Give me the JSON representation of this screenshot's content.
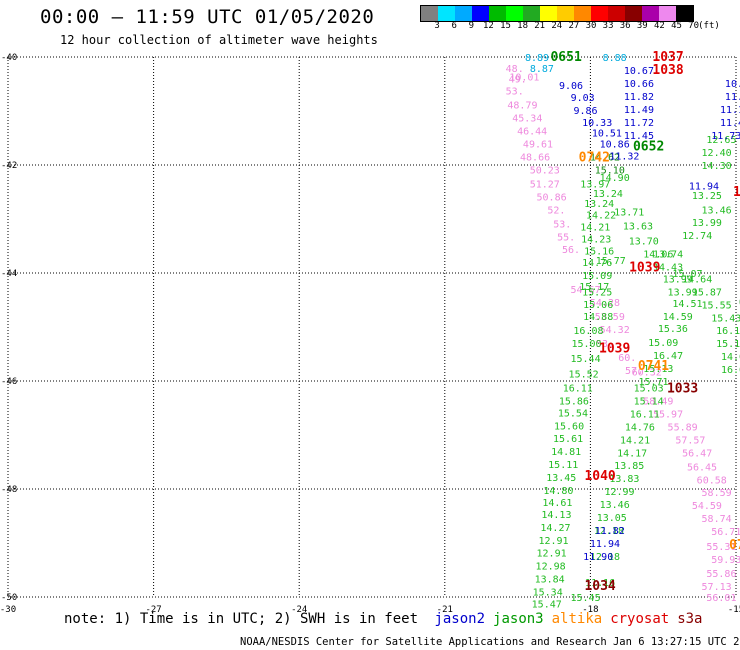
{
  "header": {
    "title": "00:00 – 11:59 UTC 01/05/2020",
    "subtitle": "12 hour collection of altimeter wave heights"
  },
  "colorbar": {
    "unit_label": "(ft)",
    "ticks": [
      "3",
      "6",
      "9",
      "12",
      "15",
      "18",
      "21",
      "24",
      "27",
      "30",
      "33",
      "36",
      "39",
      "42",
      "45",
      "70"
    ],
    "colors": [
      "#808080",
      "#00e5ff",
      "#00aaff",
      "#0000ff",
      "#00bb00",
      "#00ff00",
      "#22aa22",
      "#ffff00",
      "#ffcc00",
      "#ff8800",
      "#ff0000",
      "#cc0000",
      "#880000",
      "#aa00aa",
      "#ee88ee",
      "#000000"
    ]
  },
  "map": {
    "lon_ticks": [
      "-30",
      "-27",
      "-24",
      "-21",
      "-18",
      "-15"
    ],
    "lat_ticks": [
      "-40",
      "-42",
      "-44",
      "-46",
      "-48",
      "-50"
    ],
    "lon_range": [
      -30,
      -15
    ],
    "lat_range": [
      -50,
      -40
    ],
    "grid": true
  },
  "observations": {
    "jason3": [
      {
        "t": "15.77",
        "lon": -17.58,
        "lat": -43.76
      },
      {
        "t": "15.25",
        "lon": -17.86,
        "lat": -44.34
      },
      {
        "t": "15.06",
        "lon": -17.84,
        "lat": -44.57
      },
      {
        "t": "14.88",
        "lon": -17.84,
        "lat": -44.8
      },
      {
        "t": "16.08",
        "lon": -18.04,
        "lat": -45.06
      },
      {
        "t": "15.00",
        "lon": -18.08,
        "lat": -45.3
      },
      {
        "t": "15.44",
        "lon": -18.1,
        "lat": -45.57
      },
      {
        "t": "15.52",
        "lon": -18.14,
        "lat": -45.86
      },
      {
        "t": "16.11",
        "lon": -18.26,
        "lat": -46.12
      },
      {
        "t": "15.86",
        "lon": -18.34,
        "lat": -46.36
      },
      {
        "t": "15.54",
        "lon": -18.36,
        "lat": -46.58
      },
      {
        "t": "15.60",
        "lon": -18.44,
        "lat": -46.82
      },
      {
        "t": "15.61",
        "lon": -18.46,
        "lat": -47.06
      },
      {
        "t": "14.81",
        "lon": -18.5,
        "lat": -47.3
      },
      {
        "t": "15.11",
        "lon": -18.56,
        "lat": -47.54
      },
      {
        "t": "13.45",
        "lon": -18.6,
        "lat": -47.78
      },
      {
        "t": "14.80",
        "lon": -18.66,
        "lat": -48.02
      },
      {
        "t": "14.61",
        "lon": -18.68,
        "lat": -48.24
      },
      {
        "t": "14.13",
        "lon": -18.7,
        "lat": -48.46
      },
      {
        "t": "14.27",
        "lon": -18.72,
        "lat": -48.7
      },
      {
        "t": "12.91",
        "lon": -18.76,
        "lat": -48.94
      },
      {
        "t": "12.91",
        "lon": -18.8,
        "lat": -49.18
      },
      {
        "t": "12.98",
        "lon": -18.82,
        "lat": -49.42
      },
      {
        "t": "13.84",
        "lon": -18.84,
        "lat": -49.66
      },
      {
        "t": "15.34",
        "lon": -18.88,
        "lat": -49.9
      },
      {
        "t": "15.47",
        "lon": -18.9,
        "lat": -50.12
      },
      {
        "t": "13.97",
        "lon": -17.9,
        "lat": -42.34
      },
      {
        "t": "13.24",
        "lon": -17.64,
        "lat": -42.52
      },
      {
        "t": "13.24",
        "lon": -17.82,
        "lat": -42.7
      },
      {
        "t": "14.22",
        "lon": -17.78,
        "lat": -42.92
      },
      {
        "t": "14.21",
        "lon": -17.9,
        "lat": -43.14
      },
      {
        "t": "14.23",
        "lon": -17.88,
        "lat": -43.36
      },
      {
        "t": "15.16",
        "lon": -17.82,
        "lat": -43.58
      },
      {
        "t": "14.76",
        "lon": -17.86,
        "lat": -43.8
      },
      {
        "t": "15.09",
        "lon": -17.86,
        "lat": -44.04
      },
      {
        "t": "15.17",
        "lon": -17.92,
        "lat": -44.24
      },
      {
        "t": "15.03",
        "lon": -16.8,
        "lat": -46.12
      },
      {
        "t": "15.14",
        "lon": -16.8,
        "lat": -46.36
      },
      {
        "t": "16.11",
        "lon": -16.88,
        "lat": -46.6
      },
      {
        "t": "14.76",
        "lon": -16.98,
        "lat": -46.84
      },
      {
        "t": "14.21",
        "lon": -17.08,
        "lat": -47.08
      },
      {
        "t": "14.17",
        "lon": -17.14,
        "lat": -47.32
      },
      {
        "t": "13.85",
        "lon": -17.2,
        "lat": -47.56
      },
      {
        "t": "13.83",
        "lon": -17.3,
        "lat": -47.8
      },
      {
        "t": "12.99",
        "lon": -17.4,
        "lat": -48.04
      },
      {
        "t": "13.46",
        "lon": -17.5,
        "lat": -48.28
      },
      {
        "t": "13.05",
        "lon": -17.56,
        "lat": -48.52
      },
      {
        "t": "12.18",
        "lon": -17.62,
        "lat": -48.76
      },
      {
        "t": "12.18",
        "lon": -17.7,
        "lat": -49.24
      },
      {
        "t": "11.16",
        "lon": -17.8,
        "lat": -49.72
      },
      {
        "t": "15.45",
        "lon": -18.1,
        "lat": -50.0
      },
      {
        "t": "14.90",
        "lon": -17.5,
        "lat": -42.22
      },
      {
        "t": "13.71",
        "lon": -17.2,
        "lat": -42.86
      },
      {
        "t": "13.63",
        "lon": -17.02,
        "lat": -43.12
      },
      {
        "t": "13.70",
        "lon": -16.9,
        "lat": -43.4
      },
      {
        "t": "14.06",
        "lon": -16.6,
        "lat": -43.64
      },
      {
        "t": "14.43",
        "lon": -16.4,
        "lat": -43.88
      },
      {
        "t": "13.99",
        "lon": -16.2,
        "lat": -44.1
      },
      {
        "t": "13.99",
        "lon": -16.1,
        "lat": -44.34
      },
      {
        "t": "14.51",
        "lon": -16.0,
        "lat": -44.56
      },
      {
        "t": "14.59",
        "lon": -16.2,
        "lat": -44.8
      },
      {
        "t": "15.36",
        "lon": -16.3,
        "lat": -45.02
      },
      {
        "t": "15.09",
        "lon": -16.5,
        "lat": -45.28
      },
      {
        "t": "16.47",
        "lon": -16.4,
        "lat": -45.52
      },
      {
        "t": "15.13",
        "lon": -16.6,
        "lat": -45.76
      },
      {
        "t": "15.71",
        "lon": -16.7,
        "lat": -46.0
      },
      {
        "t": "13.74",
        "lon": -16.4,
        "lat": -43.64
      },
      {
        "t": "15.07",
        "lon": -16.0,
        "lat": -44.0
      },
      {
        "t": "14.30",
        "lon": -15.4,
        "lat": -42.0
      },
      {
        "t": "13.25",
        "lon": -15.6,
        "lat": -42.56
      },
      {
        "t": "13.46",
        "lon": -15.4,
        "lat": -42.82
      },
      {
        "t": "13.99",
        "lon": -15.6,
        "lat": -43.06
      },
      {
        "t": "12.74",
        "lon": -15.8,
        "lat": -43.3
      },
      {
        "t": "15.87",
        "lon": -15.6,
        "lat": -44.34
      },
      {
        "t": "15.55",
        "lon": -15.4,
        "lat": -44.58
      },
      {
        "t": "15.43",
        "lon": -15.2,
        "lat": -44.82
      },
      {
        "t": "16.13",
        "lon": -15.1,
        "lat": -45.06
      },
      {
        "t": "15.10",
        "lon": -15.1,
        "lat": -45.3
      },
      {
        "t": "14.00",
        "lon": -15.0,
        "lat": -45.54
      },
      {
        "t": "16.00",
        "lon": -15.0,
        "lat": -45.78
      },
      {
        "t": "12.65",
        "lon": -15.3,
        "lat": -41.52
      },
      {
        "t": "12.40",
        "lon": -15.4,
        "lat": -41.76
      },
      {
        "t": "14.64",
        "lon": -15.8,
        "lat": -44.1
      }
    ],
    "jason3_dark": [
      {
        "t": "14.62",
        "lon": -17.7,
        "lat": -41.84
      },
      {
        "t": "15.10",
        "lon": -17.6,
        "lat": -42.08
      }
    ],
    "jason2": [
      {
        "t": "10.67",
        "lon": -17.0,
        "lat": -40.24
      },
      {
        "t": "10.66",
        "lon": -17.0,
        "lat": -40.48
      },
      {
        "t": "11.82",
        "lon": -17.0,
        "lat": -40.72
      },
      {
        "t": "11.49",
        "lon": -17.0,
        "lat": -40.96
      },
      {
        "t": "11.72",
        "lon": -17.0,
        "lat": -41.2
      },
      {
        "t": "11.45",
        "lon": -17.0,
        "lat": -41.44
      },
      {
        "t": "9.06",
        "lon": -18.4,
        "lat": -40.52
      },
      {
        "t": "9.03",
        "lon": -18.16,
        "lat": -40.74
      },
      {
        "t": "9.86",
        "lon": -18.1,
        "lat": -40.98
      },
      {
        "t": "10.33",
        "lon": -17.86,
        "lat": -41.2
      },
      {
        "t": "10.51",
        "lon": -17.66,
        "lat": -41.4
      },
      {
        "t": "10.86",
        "lon": -17.5,
        "lat": -41.6
      },
      {
        "t": "11.32",
        "lon": -17.3,
        "lat": -41.82
      },
      {
        "t": "11.94",
        "lon": -15.66,
        "lat": -42.38
      },
      {
        "t": "9.",
        "lon": -14.86,
        "lat": -40.0
      },
      {
        "t": "9.",
        "lon": -14.92,
        "lat": -40.24
      },
      {
        "t": "10.6",
        "lon": -14.98,
        "lat": -40.48
      },
      {
        "t": "11.6",
        "lon": -14.98,
        "lat": -40.72
      },
      {
        "t": "11.13",
        "lon": -15.02,
        "lat": -40.96
      },
      {
        "t": "11.45",
        "lon": -15.02,
        "lat": -41.2
      },
      {
        "t": "11.73",
        "lon": -15.2,
        "lat": -41.44
      },
      {
        "t": "11.82",
        "lon": -17.6,
        "lat": -48.76
      },
      {
        "t": "11.94",
        "lon": -17.7,
        "lat": -49.0
      },
      {
        "t": "11.90",
        "lon": -17.84,
        "lat": -49.24
      }
    ],
    "jason2_cyan": [
      {
        "t": "8.89",
        "lon": -19.1,
        "lat": -40.0
      },
      {
        "t": "8.87",
        "lon": -19.0,
        "lat": -40.2
      },
      {
        "t": "8.88",
        "lon": -17.5,
        "lat": -40.0
      }
    ],
    "s3a": [
      {
        "t": "48.",
        "lon": -19.56,
        "lat": -40.2
      },
      {
        "t": "49.",
        "lon": -19.5,
        "lat": -40.4
      },
      {
        "t": "10.01",
        "lon": -19.36,
        "lat": -40.36
      },
      {
        "t": "53.",
        "lon": -19.56,
        "lat": -40.62
      },
      {
        "t": "48.79",
        "lon": -19.4,
        "lat": -40.88
      },
      {
        "t": "45.34",
        "lon": -19.3,
        "lat": -41.12
      },
      {
        "t": "46.44",
        "lon": -19.2,
        "lat": -41.36
      },
      {
        "t": "49.61",
        "lon": -19.08,
        "lat": -41.6
      },
      {
        "t": "48.66",
        "lon": -19.14,
        "lat": -41.84
      },
      {
        "t": "50.23",
        "lon": -18.94,
        "lat": -42.08
      },
      {
        "t": "51.27",
        "lon": -18.94,
        "lat": -42.34
      },
      {
        "t": "50.86",
        "lon": -18.8,
        "lat": -42.58
      },
      {
        "t": "52.",
        "lon": -18.7,
        "lat": -42.82
      },
      {
        "t": "53.",
        "lon": -18.58,
        "lat": -43.08
      },
      {
        "t": "55.",
        "lon": -18.5,
        "lat": -43.32
      },
      {
        "t": "56.",
        "lon": -18.4,
        "lat": -43.56
      },
      {
        "t": "54.67",
        "lon": -18.1,
        "lat": -44.3
      },
      {
        "t": "54.28",
        "lon": -17.7,
        "lat": -44.54
      },
      {
        "t": "53.59",
        "lon": -17.6,
        "lat": -44.8
      },
      {
        "t": "54.32",
        "lon": -17.5,
        "lat": -45.04
      },
      {
        "t": "53.",
        "lon": -17.7,
        "lat": -45.3
      },
      {
        "t": "60.",
        "lon": -17.24,
        "lat": -45.56
      },
      {
        "t": "57.",
        "lon": -17.1,
        "lat": -45.8
      },
      {
        "t": "60.32",
        "lon": -16.84,
        "lat": -45.82
      },
      {
        "t": "58.49",
        "lon": -16.6,
        "lat": -46.36
      },
      {
        "t": "55.97",
        "lon": -16.4,
        "lat": -46.6
      },
      {
        "t": "55.89",
        "lon": -16.1,
        "lat": -46.84
      },
      {
        "t": "57.57",
        "lon": -15.94,
        "lat": -47.08
      },
      {
        "t": "56.47",
        "lon": -15.8,
        "lat": -47.32
      },
      {
        "t": "56.45",
        "lon": -15.7,
        "lat": -47.58
      },
      {
        "t": "60.58",
        "lon": -15.5,
        "lat": -47.82
      },
      {
        "t": "58.59",
        "lon": -15.4,
        "lat": -48.06
      },
      {
        "t": "54.59",
        "lon": -15.6,
        "lat": -48.3
      },
      {
        "t": "58.74",
        "lon": -15.4,
        "lat": -48.54
      },
      {
        "t": "56.71",
        "lon": -15.2,
        "lat": -48.78
      },
      {
        "t": "55.31",
        "lon": -15.3,
        "lat": -49.06
      },
      {
        "t": "59.93",
        "lon": -15.2,
        "lat": -49.3
      },
      {
        "t": "55.86",
        "lon": -15.3,
        "lat": -49.56
      },
      {
        "t": "57.13",
        "lon": -15.4,
        "lat": -49.8
      },
      {
        "t": "56.01",
        "lon": -15.3,
        "lat": -50.0
      }
    ],
    "hour_labels": [
      {
        "t": "0651",
        "lon": -18.5,
        "lat": -40.0,
        "c": "#008800"
      },
      {
        "t": "0652",
        "lon": -16.8,
        "lat": -41.66,
        "c": "#008800"
      },
      {
        "t": "0742",
        "lon": -17.92,
        "lat": -41.86,
        "c": "#ff8800"
      },
      {
        "t": "0741",
        "lon": -16.7,
        "lat": -45.72,
        "c": "#ff8800"
      },
      {
        "t": "07-",
        "lon": -14.9,
        "lat": -49.04,
        "c": "#ff8800"
      },
      {
        "t": "1037",
        "lon": -16.4,
        "lat": -40.0,
        "c": "#dd0000"
      },
      {
        "t": "1038",
        "lon": -16.4,
        "lat": -40.24,
        "c": "#dd0000"
      },
      {
        "t": "1039",
        "lon": -16.88,
        "lat": -43.9,
        "c": "#dd0000"
      },
      {
        "t": "1039",
        "lon": -17.5,
        "lat": -45.4,
        "c": "#dd0000"
      },
      {
        "t": "1040",
        "lon": -17.8,
        "lat": -47.76,
        "c": "#dd0000"
      },
      {
        "t": "1033",
        "lon": -16.1,
        "lat": -46.14,
        "c": "#880000"
      },
      {
        "t": "1034",
        "lon": -17.8,
        "lat": -49.8,
        "c": "#880000"
      },
      {
        "t": "10",
        "lon": -14.9,
        "lat": -42.5,
        "c": "#dd0000"
      },
      {
        "t": "0",
        "lon": -14.86,
        "lat": -44.56,
        "c": "#008800"
      }
    ]
  },
  "legend": {
    "note": "note: 1) Time is in UTC; 2) SWH is in feet",
    "satellites": [
      {
        "name": "jason2",
        "color": "#0000cc"
      },
      {
        "name": "jason3",
        "color": "#009900"
      },
      {
        "name": "altika",
        "color": "#ff8800"
      },
      {
        "name": "cryosat",
        "color": "#dd0000"
      },
      {
        "name": "s3a",
        "color": "#880000"
      }
    ]
  },
  "footer": {
    "credit": "NOAA/NESDIS Center for Satellite Applications and Research   Jan  6 13:27:15 UTC 2020"
  }
}
